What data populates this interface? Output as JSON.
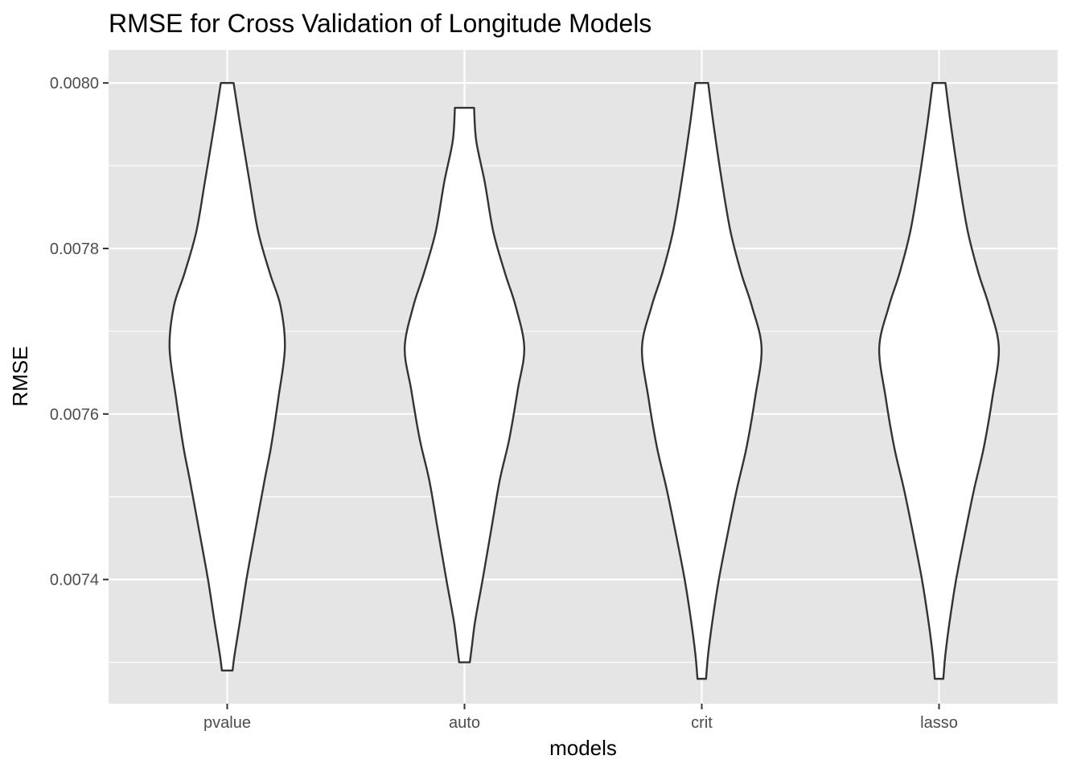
{
  "chart_data": {
    "type": "violin",
    "title": "RMSE for Cross Validation of Longitude Models",
    "xlabel": "models",
    "ylabel": "RMSE",
    "categories": [
      "pvalue",
      "auto",
      "crit",
      "lasso"
    ],
    "ylim": [
      0.00725,
      0.00804
    ],
    "y_ticks": [
      0.0074,
      0.0076,
      0.0078,
      0.008
    ],
    "y_tick_labels": [
      "0.0074",
      "0.0076",
      "0.0078",
      "0.0080"
    ],
    "series": [
      {
        "category": "pvalue",
        "min": 0.00729,
        "max": 0.008,
        "profile": [
          {
            "y": 0.00729,
            "halfwidth": 0.05
          },
          {
            "y": 0.00731,
            "halfwidth": 0.07
          },
          {
            "y": 0.00735,
            "halfwidth": 0.12
          },
          {
            "y": 0.0074,
            "halfwidth": 0.18
          },
          {
            "y": 0.00745,
            "halfwidth": 0.25
          },
          {
            "y": 0.00752,
            "halfwidth": 0.35
          },
          {
            "y": 0.00756,
            "halfwidth": 0.41
          },
          {
            "y": 0.00762,
            "halfwidth": 0.48
          },
          {
            "y": 0.00768,
            "halfwidth": 0.54
          },
          {
            "y": 0.00773,
            "halfwidth": 0.5
          },
          {
            "y": 0.00777,
            "halfwidth": 0.4
          },
          {
            "y": 0.00782,
            "halfwidth": 0.29
          },
          {
            "y": 0.00788,
            "halfwidth": 0.21
          },
          {
            "y": 0.00795,
            "halfwidth": 0.12
          },
          {
            "y": 0.008,
            "halfwidth": 0.06
          }
        ]
      },
      {
        "category": "auto",
        "min": 0.0073,
        "max": 0.00797,
        "profile": [
          {
            "y": 0.0073,
            "halfwidth": 0.05
          },
          {
            "y": 0.00732,
            "halfwidth": 0.07
          },
          {
            "y": 0.00735,
            "halfwidth": 0.1
          },
          {
            "y": 0.0074,
            "halfwidth": 0.17
          },
          {
            "y": 0.00746,
            "halfwidth": 0.25
          },
          {
            "y": 0.00752,
            "halfwidth": 0.33
          },
          {
            "y": 0.00757,
            "halfwidth": 0.42
          },
          {
            "y": 0.00763,
            "halfwidth": 0.5
          },
          {
            "y": 0.00768,
            "halfwidth": 0.56
          },
          {
            "y": 0.00773,
            "halfwidth": 0.48
          },
          {
            "y": 0.00777,
            "halfwidth": 0.38
          },
          {
            "y": 0.00782,
            "halfwidth": 0.27
          },
          {
            "y": 0.00788,
            "halfwidth": 0.19
          },
          {
            "y": 0.00793,
            "halfwidth": 0.11
          },
          {
            "y": 0.00797,
            "halfwidth": 0.09
          }
        ]
      },
      {
        "category": "crit",
        "min": 0.00728,
        "max": 0.008,
        "profile": [
          {
            "y": 0.00728,
            "halfwidth": 0.04
          },
          {
            "y": 0.00731,
            "halfwidth": 0.06
          },
          {
            "y": 0.00735,
            "halfwidth": 0.1
          },
          {
            "y": 0.0074,
            "halfwidth": 0.16
          },
          {
            "y": 0.00746,
            "halfwidth": 0.25
          },
          {
            "y": 0.00751,
            "halfwidth": 0.33
          },
          {
            "y": 0.00756,
            "halfwidth": 0.42
          },
          {
            "y": 0.00762,
            "halfwidth": 0.5
          },
          {
            "y": 0.00768,
            "halfwidth": 0.56
          },
          {
            "y": 0.00773,
            "halfwidth": 0.47
          },
          {
            "y": 0.00777,
            "halfwidth": 0.37
          },
          {
            "y": 0.00782,
            "halfwidth": 0.27
          },
          {
            "y": 0.00788,
            "halfwidth": 0.19
          },
          {
            "y": 0.00795,
            "halfwidth": 0.11
          },
          {
            "y": 0.008,
            "halfwidth": 0.06
          }
        ]
      },
      {
        "category": "lasso",
        "min": 0.00728,
        "max": 0.008,
        "profile": [
          {
            "y": 0.00728,
            "halfwidth": 0.04
          },
          {
            "y": 0.00731,
            "halfwidth": 0.06
          },
          {
            "y": 0.00735,
            "halfwidth": 0.1
          },
          {
            "y": 0.0074,
            "halfwidth": 0.16
          },
          {
            "y": 0.00746,
            "halfwidth": 0.25
          },
          {
            "y": 0.00751,
            "halfwidth": 0.33
          },
          {
            "y": 0.00756,
            "halfwidth": 0.42
          },
          {
            "y": 0.00762,
            "halfwidth": 0.5
          },
          {
            "y": 0.00768,
            "halfwidth": 0.56
          },
          {
            "y": 0.00773,
            "halfwidth": 0.47
          },
          {
            "y": 0.00777,
            "halfwidth": 0.37
          },
          {
            "y": 0.00782,
            "halfwidth": 0.27
          },
          {
            "y": 0.00788,
            "halfwidth": 0.19
          },
          {
            "y": 0.00795,
            "halfwidth": 0.11
          },
          {
            "y": 0.008,
            "halfwidth": 0.06
          }
        ]
      }
    ],
    "grid": true,
    "legend": "none",
    "colors": {
      "panel_background": "#e5e5e5",
      "grid_line": "#ffffff",
      "violin_fill": "#ffffff",
      "violin_outline": "#333333",
      "tick_label": "#4d4d4d",
      "tick_mark": "#333333"
    }
  }
}
